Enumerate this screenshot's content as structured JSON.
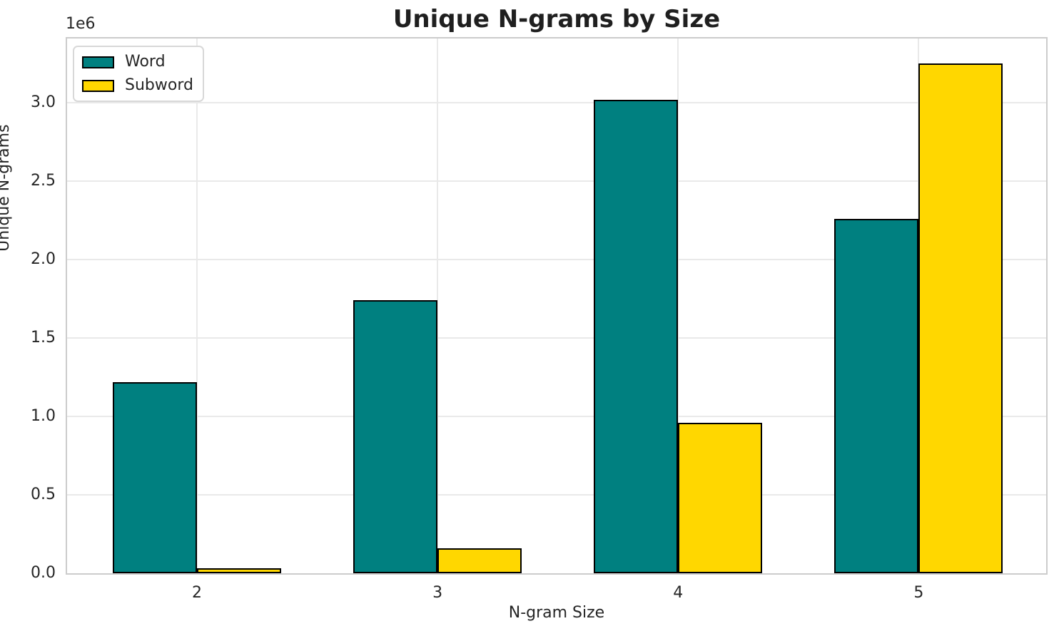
{
  "chart_data": {
    "type": "bar",
    "title": "Unique N-grams by Size",
    "xlabel": "N-gram Size",
    "ylabel": "Unique N-grams",
    "y_scale_offset_label": "1e6",
    "categories": [
      "2",
      "3",
      "4",
      "5"
    ],
    "x_positions": [
      2,
      3,
      4,
      5
    ],
    "series": [
      {
        "name": "Word",
        "color": "#008080",
        "values": [
          1220000,
          1740000,
          3020000,
          2260000
        ]
      },
      {
        "name": "Subword",
        "color": "#FFD700",
        "values": [
          30000,
          160000,
          960000,
          3250000
        ]
      }
    ],
    "bar_width_data_units": 0.35,
    "bar_edge_color": "#000000",
    "xlim": [
      1.46,
      5.53
    ],
    "ylim": [
      0,
      3410000
    ],
    "yticks": [
      0,
      500000,
      1000000,
      1500000,
      2000000,
      2500000,
      3000000
    ],
    "ytick_labels": [
      "0.0",
      "0.5",
      "1.0",
      "1.5",
      "2.0",
      "2.5",
      "3.0"
    ],
    "grid": true,
    "legend": {
      "position": "upper left",
      "entries": [
        "Word",
        "Subword"
      ]
    }
  },
  "style": {
    "grid_color": "#e9e9e9",
    "spine_color": "#cccccc",
    "text_color": "#262626",
    "plot_background": "#ffffff",
    "title_color": "#1f1f1f"
  }
}
